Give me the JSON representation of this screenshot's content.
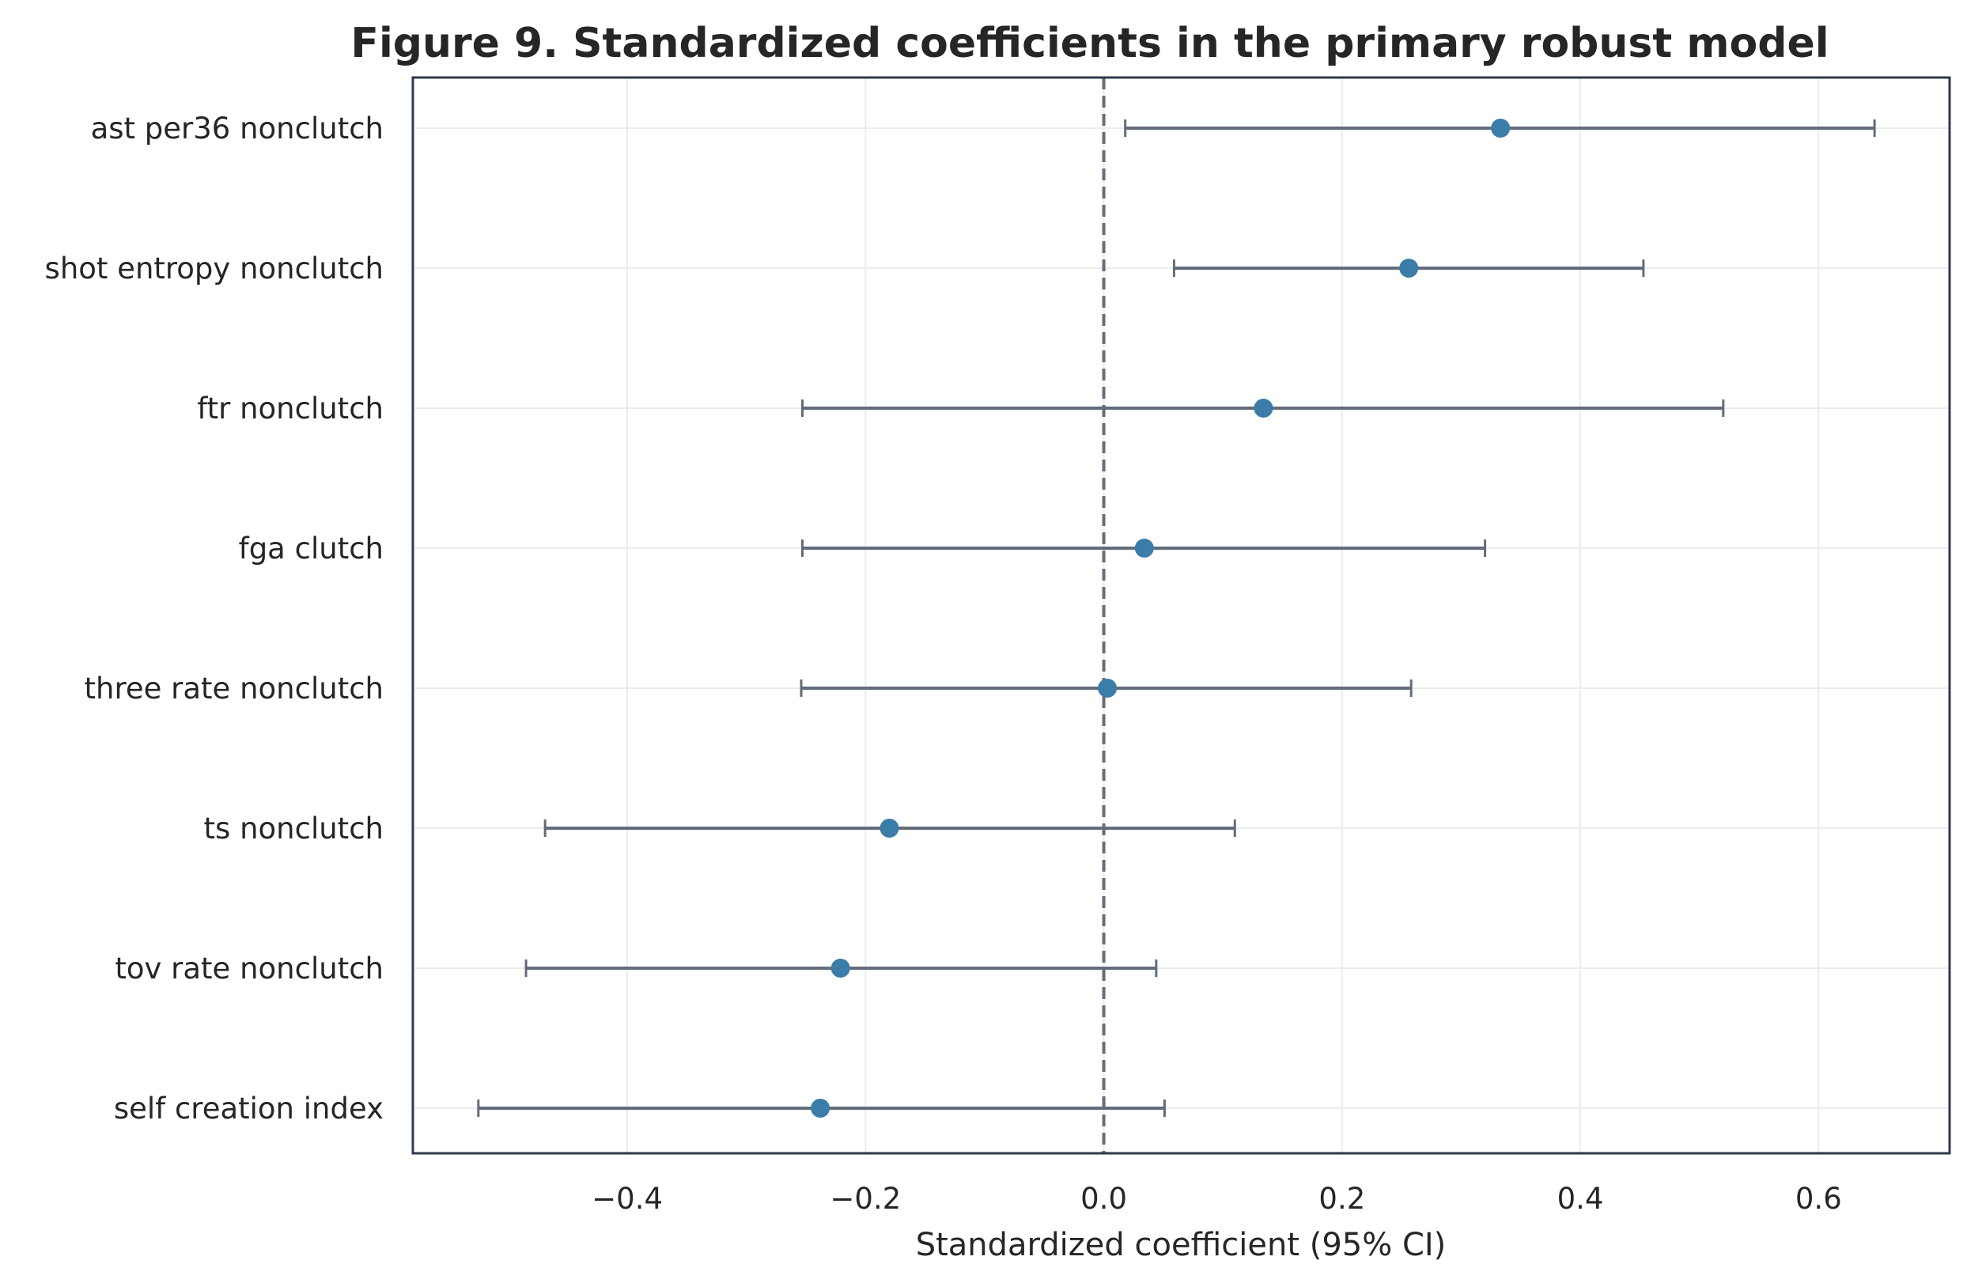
{
  "chart_data": {
    "type": "scatter",
    "subtype": "coefficient-plot-with-95-ci",
    "title": "Figure 9. Standardized coefficients in the primary robust model",
    "xlabel": "Standardized coefficient (95% CI)",
    "ylabel": "",
    "xlim": [
      -0.58,
      0.71
    ],
    "xticks": [
      -0.4,
      -0.2,
      0.0,
      0.2,
      0.4,
      0.6
    ],
    "xtick_labels": [
      "−0.4",
      "−0.2",
      "0.0",
      "0.2",
      "0.4",
      "0.6"
    ],
    "reference_line": 0.0,
    "grid": true,
    "legend": "none",
    "categories": [
      "ast per36 nonclutch",
      "shot entropy nonclutch",
      "ftr nonclutch",
      "fga clutch",
      "three rate nonclutch",
      "ts nonclutch",
      "tov rate nonclutch",
      "self creation index"
    ],
    "series": [
      {
        "estimate": [
          0.333,
          0.256,
          0.134,
          0.034,
          0.003,
          -0.18,
          -0.221,
          -0.238
        ],
        "ci_low": [
          0.018,
          0.059,
          -0.253,
          -0.253,
          -0.254,
          -0.469,
          -0.485,
          -0.525
        ],
        "ci_high": [
          0.647,
          0.453,
          0.52,
          0.32,
          0.258,
          0.11,
          0.044,
          0.051
        ]
      }
    ],
    "colors": {
      "point": "#3b7ca8",
      "errorbar": "#636c7a",
      "reference_line": "#6a6a7a",
      "grid": "#ececec",
      "axes_frame": "#2f3a4a"
    }
  }
}
